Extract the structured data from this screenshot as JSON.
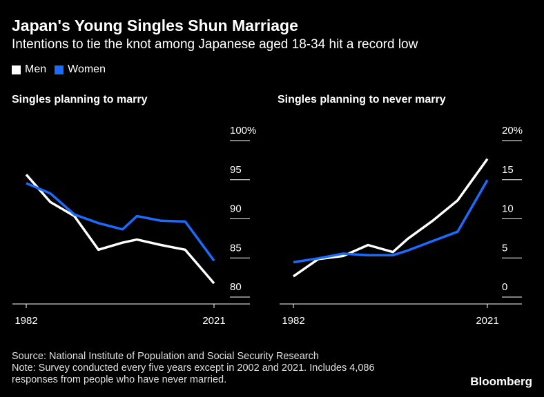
{
  "header": {
    "title": "Japan's Young Singles Shun Marriage",
    "subtitle": "Intentions to tie the knot among Japanese aged 18-34 hit a record low"
  },
  "legend": [
    {
      "label": "Men",
      "color": "#ffffff"
    },
    {
      "label": "Women",
      "color": "#1a6bff"
    }
  ],
  "footer": {
    "source": "Source: National Institute of Population and Social Security Research",
    "note_line1": "Note: Survey conducted every five years except in 2002 and 2021. Includes 4,086",
    "note_line2": "responses from people who have never married.",
    "brand": "Bloomberg"
  },
  "chart_data": [
    {
      "type": "line",
      "title": "Singles planning to marry",
      "x": [
        1982,
        1987,
        1992,
        1997,
        2002,
        2005,
        2010,
        2015,
        2021
      ],
      "x_tick_labels": [
        "1982",
        "2021"
      ],
      "ylim": [
        80,
        100
      ],
      "y_ticks": [
        80,
        85,
        90,
        95,
        100
      ],
      "y_tick_labels": [
        "80",
        "85",
        "90",
        "95",
        "100%"
      ],
      "series": [
        {
          "name": "Men",
          "color": "#ffffff",
          "values": [
            95.3,
            91.8,
            90.0,
            85.7,
            86.6,
            87.0,
            86.3,
            85.7,
            81.4
          ]
        },
        {
          "name": "Women",
          "color": "#1a6bff",
          "values": [
            94.2,
            92.9,
            90.2,
            89.1,
            88.3,
            90.0,
            89.4,
            89.3,
            84.3
          ]
        }
      ]
    },
    {
      "type": "line",
      "title": "Singles planning to never marry",
      "x": [
        1982,
        1987,
        1992,
        1997,
        2002,
        2005,
        2010,
        2015,
        2021
      ],
      "x_tick_labels": [
        "1982",
        "2021"
      ],
      "ylim": [
        0,
        20
      ],
      "y_ticks": [
        0,
        5,
        10,
        15,
        20
      ],
      "y_tick_labels": [
        "0",
        "5",
        "10",
        "15",
        "20%"
      ],
      "series": [
        {
          "name": "Men",
          "color": "#ffffff",
          "values": [
            2.3,
            4.5,
            4.9,
            6.3,
            5.4,
            7.1,
            9.4,
            12.0,
            17.3
          ]
        },
        {
          "name": "Women",
          "color": "#1a6bff",
          "values": [
            4.1,
            4.6,
            5.2,
            5.0,
            5.0,
            5.6,
            6.8,
            8.0,
            14.6
          ]
        }
      ]
    }
  ]
}
